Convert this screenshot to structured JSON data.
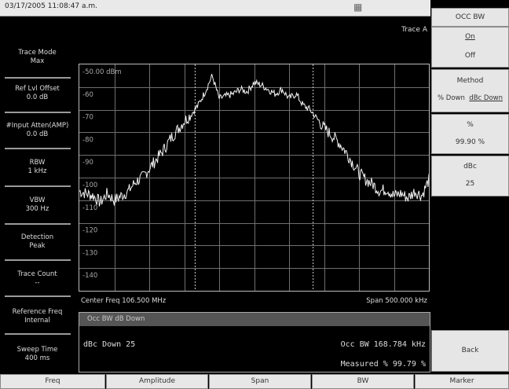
{
  "header": {
    "datetime": "03/17/2005 11:08:47 a.m.",
    "status_icon": "person-icon"
  },
  "trace_label": "Trace A",
  "left_panel": [
    {
      "label": "Trace Mode",
      "value": "Max"
    },
    {
      "label": "Ref Lvl Offset",
      "value": "0.0 dB"
    },
    {
      "label": "#Input Atten(AMP)",
      "value": "0.0 dB"
    },
    {
      "label": "RBW",
      "value": "1 kHz"
    },
    {
      "label": "VBW",
      "value": "300 Hz"
    },
    {
      "label": "Detection",
      "value": "Peak"
    },
    {
      "label": "Trace Count",
      "value": "--"
    },
    {
      "label": "Reference Freq",
      "value": "Internal"
    },
    {
      "label": "Sweep Time",
      "value": "400 ms"
    }
  ],
  "plot": {
    "y_labels": [
      "-50.00 dBm",
      "-60",
      "-70",
      "-80",
      "-90",
      "-100",
      "-110",
      "-120",
      "-130",
      "-140"
    ],
    "center_freq": "Center Freq 106.500 MHz",
    "span": "Span 500.000 kHz"
  },
  "chart_data": {
    "type": "line",
    "ylabel": "dBm",
    "ylim": [
      -150,
      -50
    ],
    "x_center_mhz": 106.5,
    "x_span_khz": 500,
    "series": [
      {
        "x_khz": [
          -250,
          -240,
          -230,
          -220,
          -210,
          -200,
          -190,
          -180,
          -170,
          -160,
          -150,
          -140,
          -130,
          -120,
          -110,
          -100,
          -90,
          -80,
          -70,
          -60,
          -50,
          -40,
          -30,
          -20,
          -10,
          0,
          10,
          20,
          30,
          40,
          50,
          60,
          70,
          80,
          90,
          100,
          110,
          120,
          130,
          140,
          150,
          160,
          170,
          180,
          190,
          200,
          210,
          220,
          230,
          240,
          250
        ],
        "y_dbm": [
          -106,
          -107,
          -108,
          -111,
          -107,
          -110,
          -108,
          -106,
          -102,
          -100,
          -96,
          -92,
          -88,
          -83,
          -79,
          -75,
          -72,
          -68,
          -62,
          -55,
          -65,
          -64,
          -63,
          -61,
          -62,
          -58,
          -59,
          -61,
          -63,
          -61,
          -65,
          -63,
          -68,
          -70,
          -74,
          -78,
          -81,
          -84,
          -88,
          -93,
          -98,
          -101,
          -103,
          -106,
          -105,
          -108,
          -107,
          -109,
          -106,
          -108,
          -101
        ]
      }
    ]
  },
  "occ_panel": {
    "title": "Occ BW dB Down",
    "dbc_down": "dBc Down  25",
    "occ_bw": "Occ BW 168.784 kHz",
    "measured": "Measured % 99.79 %"
  },
  "right_menu": {
    "title": "OCC BW",
    "on_label": "On",
    "off_label": "Off",
    "method_label": "Method",
    "method_opt1": "% Down",
    "method_opt2": "dBc Down",
    "pct_label": "%",
    "pct_value": "99.90 %",
    "dbc_label": "dBc",
    "dbc_value": "25",
    "back_label": "Back"
  },
  "bottom_tabs": [
    "Freq",
    "Amplitude",
    "Span",
    "BW",
    "Marker"
  ]
}
